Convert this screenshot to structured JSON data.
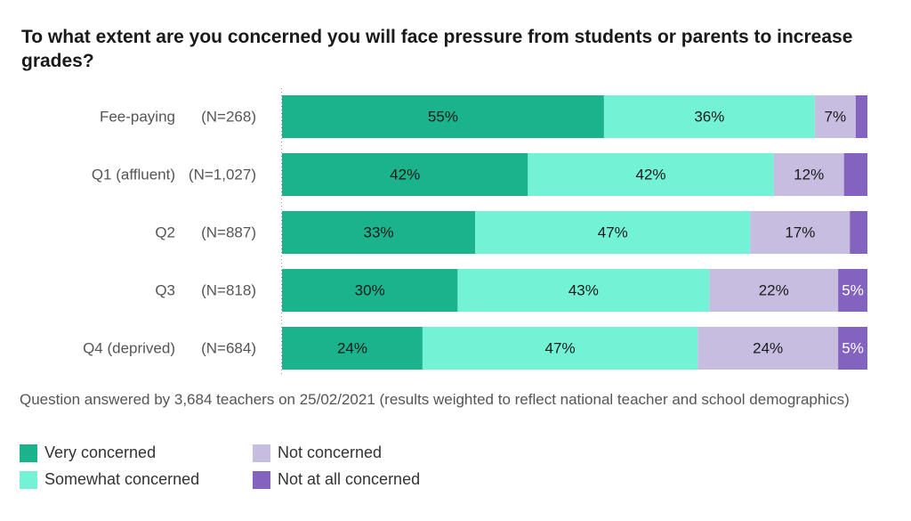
{
  "title": "To what extent are you concerned you will face pressure from students or parents to increase grades?",
  "note": "Question answered by 3,684 teachers on 25/02/2021 (results weighted to reflect national teacher and school demographics)",
  "colors": {
    "very": "#1bb38c",
    "somewhat": "#74f2d6",
    "not": "#c7bde0",
    "not_at_all": "#8463c0"
  },
  "legend": [
    {
      "label": "Very concerned",
      "color": "#1bb38c"
    },
    {
      "label": "Somewhat concerned",
      "color": "#74f2d6"
    },
    {
      "label": "Not concerned",
      "color": "#c7bde0"
    },
    {
      "label": "Not at all concerned",
      "color": "#8463c0"
    }
  ],
  "chart_data": {
    "type": "bar",
    "orientation": "horizontal",
    "stacked": true,
    "title": "To what extent are you concerned you will face pressure from students or parents to increase grades?",
    "categories": [
      "Fee-paying",
      "Q1 (affluent)",
      "Q2",
      "Q3",
      "Q4 (deprived)"
    ],
    "counts": [
      "(N=268)",
      "(N=1,027)",
      "(N=887)",
      "(N=818)",
      "(N=684)"
    ],
    "series": [
      {
        "name": "Very concerned",
        "values": [
          55,
          42,
          33,
          30,
          24
        ],
        "labels": [
          "55%",
          "42%",
          "33%",
          "30%",
          "24%"
        ]
      },
      {
        "name": "Somewhat concerned",
        "values": [
          36,
          42,
          47,
          43,
          47
        ],
        "labels": [
          "36%",
          "42%",
          "47%",
          "43%",
          "47%"
        ]
      },
      {
        "name": "Not concerned",
        "values": [
          7,
          12,
          17,
          22,
          24
        ],
        "labels": [
          "7%",
          "12%",
          "17%",
          "22%",
          "24%"
        ]
      },
      {
        "name": "Not at all concerned",
        "values": [
          2,
          4,
          3,
          5,
          5
        ],
        "labels": [
          "",
          "",
          "",
          "5%",
          "5%"
        ]
      }
    ],
    "xlim": [
      0,
      100
    ],
    "grid": false,
    "legend_position": "bottom-left"
  }
}
